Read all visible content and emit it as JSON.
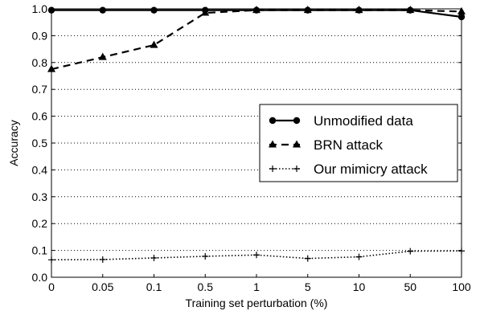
{
  "chart_data": {
    "type": "line",
    "title": "",
    "xlabel": "Training set perturbation (%)",
    "ylabel": "Accuracy",
    "categories": [
      "0",
      "0.05",
      "0.1",
      "0.5",
      "1",
      "5",
      "10",
      "50",
      "100"
    ],
    "yticks": [
      "0.0",
      "0.1",
      "0.2",
      "0.3",
      "0.4",
      "0.5",
      "0.6",
      "0.7",
      "0.8",
      "0.9",
      "1.0"
    ],
    "ylim": [
      0,
      1
    ],
    "grid": "horizontal dotted",
    "legend_position": "right",
    "series": [
      {
        "name": "Unmodified data",
        "style": "solid",
        "marker": "circle",
        "values": [
          0.995,
          0.995,
          0.995,
          0.995,
          0.995,
          0.995,
          0.995,
          0.995,
          0.97
        ]
      },
      {
        "name": "BRN attack",
        "style": "dashed",
        "marker": "triangle",
        "values": [
          0.775,
          0.82,
          0.865,
          0.985,
          0.995,
          0.995,
          0.995,
          0.995,
          0.99
        ]
      },
      {
        "name": "Our mimicry attack",
        "style": "dotted",
        "marker": "plus",
        "values": [
          0.065,
          0.066,
          0.072,
          0.078,
          0.083,
          0.07,
          0.076,
          0.097,
          0.098
        ]
      }
    ]
  }
}
